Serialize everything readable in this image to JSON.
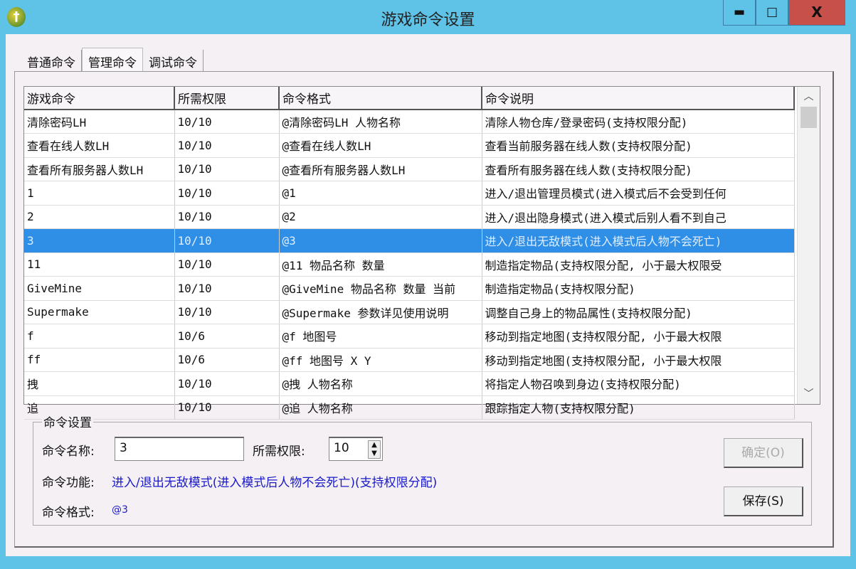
{
  "window": {
    "title": "游戏命令设置",
    "minimize": "▬",
    "maximize": "□",
    "close": "X"
  },
  "tabs": [
    {
      "label": "普通命令"
    },
    {
      "label": "管理命令",
      "active": true
    },
    {
      "label": "调试命令"
    }
  ],
  "table": {
    "columns": [
      "游戏命令",
      "所需权限",
      "命令格式",
      "命令说明"
    ],
    "rows": [
      [
        "清除密码LH",
        "10/10",
        "@清除密码LH 人物名称",
        "清除人物仓库/登录密码(支持权限分配)"
      ],
      [
        "查看在线人数LH",
        "10/10",
        "@查看在线人数LH",
        "查看当前服务器在线人数(支持权限分配)"
      ],
      [
        "查看所有服务器人数LH",
        "10/10",
        "@查看所有服务器人数LH",
        "查看所有服务器在线人数(支持权限分配)"
      ],
      [
        "1",
        "10/10",
        "@1",
        "进入/退出管理员模式(进入模式后不会受到任何"
      ],
      [
        "2",
        "10/10",
        "@2",
        "进入/退出隐身模式(进入模式后别人看不到自己"
      ],
      [
        "3",
        "10/10",
        "@3",
        "进入/退出无敌模式(进入模式后人物不会死亡)"
      ],
      [
        "11",
        "10/10",
        "@11 物品名称 数量",
        "制造指定物品(支持权限分配, 小于最大权限受"
      ],
      [
        "GiveMine",
        "10/10",
        "@GiveMine 物品名称 数量 当前",
        "制造指定物品(支持权限分配)"
      ],
      [
        "Supermake",
        "10/10",
        "@Supermake 参数详见使用说明",
        "调整自己身上的物品属性(支持权限分配)"
      ],
      [
        "f",
        "10/6",
        "@f 地图号",
        "移动到指定地图(支持权限分配, 小于最大权限"
      ],
      [
        "ff",
        "10/6",
        "@ff 地图号 X Y",
        "移动到指定地图(支持权限分配, 小于最大权限"
      ],
      [
        "拽",
        "10/10",
        "@拽 人物名称",
        "将指定人物召唤到身边(支持权限分配)"
      ],
      [
        "追",
        "10/10",
        "@追 人物名称",
        "跟踪指定人物(支持权限分配)"
      ]
    ],
    "selected_row": 5
  },
  "settings": {
    "legend": "命令设置",
    "name_label": "命令名称:",
    "name_value": "3",
    "perm_label": "所需权限:",
    "perm_value": "10",
    "func_label": "命令功能:",
    "func_value": "进入/退出无敌模式(进入模式后人物不会死亡)(支持权限分配)",
    "format_label": "命令格式:",
    "format_value": "@3",
    "ok_button": "确定(O)",
    "save_button": "保存(S)"
  }
}
